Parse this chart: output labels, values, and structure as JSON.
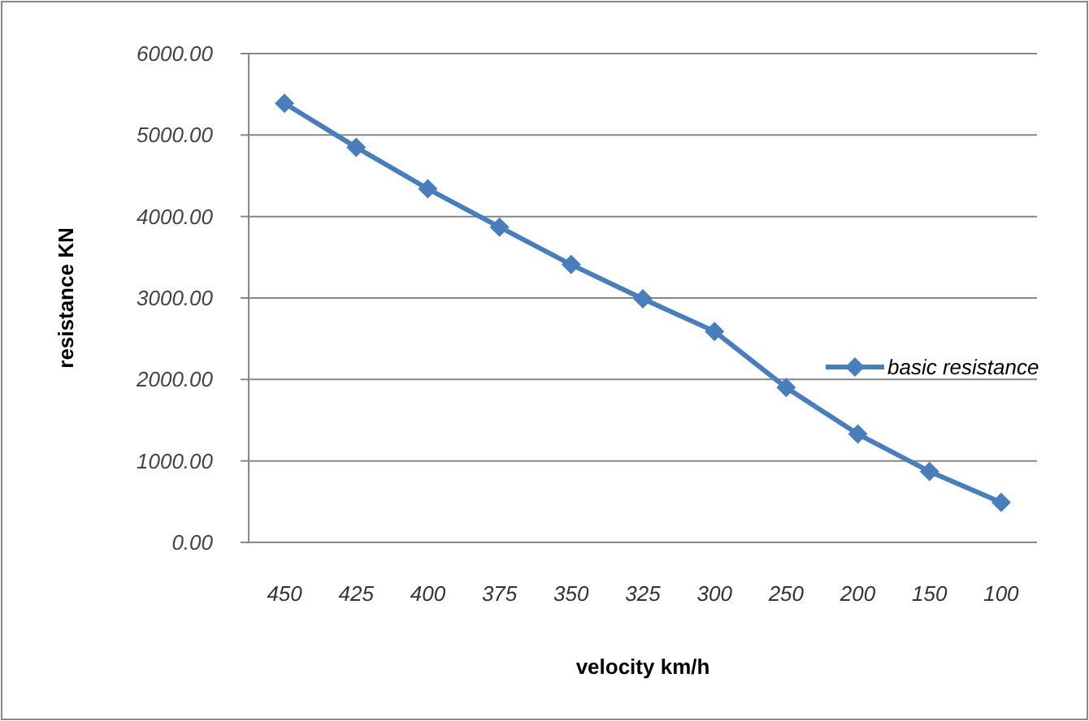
{
  "chart_data": {
    "type": "line",
    "xlabel": "velocity km/h",
    "ylabel": "resistance KN",
    "categories": [
      "450",
      "425",
      "400",
      "375",
      "350",
      "325",
      "300",
      "250",
      "200",
      "150",
      "100"
    ],
    "series": [
      {
        "name": "basic resistance",
        "color": "#4a7ebb",
        "values": [
          5390,
          4850,
          4340,
          3870,
          3410,
          2990,
          2590,
          1900,
          1330,
          870,
          490
        ]
      }
    ],
    "ylim": [
      0,
      6000
    ],
    "yticks": [
      {
        "value": 0,
        "label": "0.00"
      },
      {
        "value": 1000,
        "label": "1000.00"
      },
      {
        "value": 2000,
        "label": "2000.00"
      },
      {
        "value": 3000,
        "label": "3000.00"
      },
      {
        "value": 4000,
        "label": "4000.00"
      },
      {
        "value": 5000,
        "label": "5000.00"
      },
      {
        "value": 6000,
        "label": "6000.00"
      }
    ],
    "grid": "y",
    "legend": "right",
    "marker": "diamond",
    "line_style": "solid"
  }
}
